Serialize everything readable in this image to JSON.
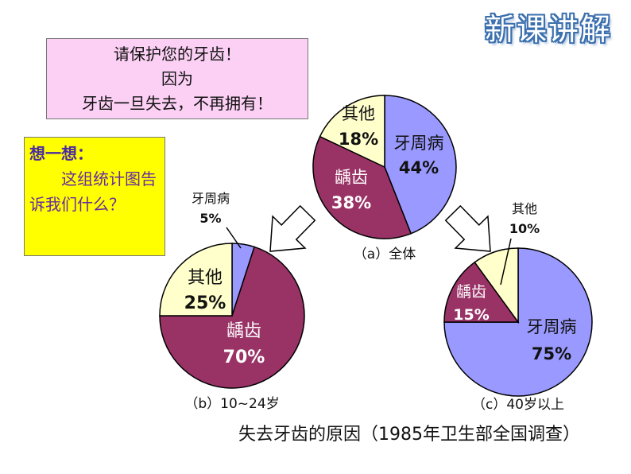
{
  "header": {
    "title": "新课讲解"
  },
  "slogan": {
    "lines": [
      "请保护您的牙齿！",
      "因为",
      "牙齿一旦失去，不再拥有！"
    ]
  },
  "think": {
    "title": "想一想：",
    "question": "这组统计图告诉我们什么？"
  },
  "caption": "失去牙齿的原因（1985年卫生部全国调查）",
  "colors": {
    "periodontal": "#9999ff",
    "caries": "#993366",
    "other": "#ffffcc",
    "outline": "#000000"
  },
  "chart_data": [
    {
      "type": "pie",
      "label": "（a）全体",
      "slices": [
        {
          "name": "牙周病",
          "value": 44,
          "display": "44%"
        },
        {
          "name": "龋齿",
          "value": 38,
          "display": "38%"
        },
        {
          "name": "其他",
          "value": 18,
          "display": "18%"
        }
      ]
    },
    {
      "type": "pie",
      "label": "（b）10~24岁",
      "slices": [
        {
          "name": "牙周病",
          "value": 5,
          "display": "5%"
        },
        {
          "name": "龋齿",
          "value": 70,
          "display": "70%"
        },
        {
          "name": "其他",
          "value": 25,
          "display": "25%"
        }
      ]
    },
    {
      "type": "pie",
      "label": "（c）40岁以上",
      "slices": [
        {
          "name": "牙周病",
          "value": 75,
          "display": "75%"
        },
        {
          "name": "龋齿",
          "value": 15,
          "display": "15%"
        },
        {
          "name": "其他",
          "value": 10,
          "display": "10%"
        }
      ]
    }
  ]
}
